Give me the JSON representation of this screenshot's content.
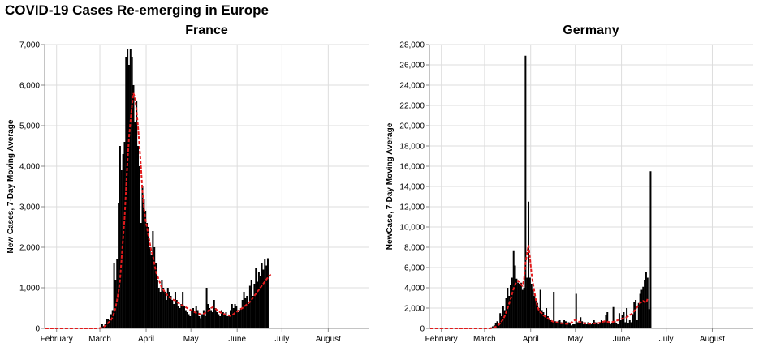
{
  "title": "COVID-19 Cases Re-emerging in Europe",
  "colors": {
    "bars": "#000000",
    "average_line": "#e31a1c",
    "grid": "#dddddd"
  },
  "chart_data": [
    {
      "type": "bar",
      "title": "France",
      "ylabel": "New Cases, 7-Day Moving Average",
      "xlabel": "",
      "ylim": [
        0,
        7000
      ],
      "yticks": [
        0,
        1000,
        2000,
        3000,
        4000,
        5000,
        6000,
        7000
      ],
      "ytick_labels": [
        "0",
        "1,000",
        "2,000",
        "3,000",
        "4,000",
        "5,000",
        "6,000",
        "7,000"
      ],
      "x_start": "2020-01-24",
      "x_end": "2020-08-28",
      "xtick_dates": [
        "2020-02-01",
        "2020-03-01",
        "2020-04-01",
        "2020-05-01",
        "2020-06-01",
        "2020-07-01",
        "2020-08-01"
      ],
      "xtick_labels": [
        "February",
        "March",
        "April",
        "May",
        "June",
        "July",
        "August"
      ],
      "grid": true,
      "bar_start_date": "2020-01-24",
      "bar_values": [
        0,
        0,
        0,
        0,
        0,
        0,
        0,
        0,
        0,
        0,
        0,
        0,
        0,
        0,
        0,
        0,
        0,
        0,
        0,
        0,
        0,
        0,
        0,
        0,
        0,
        0,
        0,
        0,
        0,
        0,
        0,
        0,
        0,
        0,
        0,
        0,
        20,
        30,
        100,
        50,
        100,
        220,
        230,
        200,
        350,
        450,
        1600,
        1200,
        1700,
        3100,
        4500,
        3900,
        4300,
        4600,
        6700,
        6900,
        6500,
        6900,
        6700,
        6000,
        5100,
        5600,
        4500,
        4000,
        2600,
        3500,
        3200,
        2900,
        2600,
        2500,
        2000,
        1800,
        2400,
        2000,
        1600,
        1200,
        1000,
        900,
        1200,
        1000,
        900,
        700,
        1000,
        900,
        800,
        700,
        600,
        900,
        700,
        550,
        500,
        600,
        900,
        550,
        450,
        400,
        350,
        300,
        450,
        500,
        400,
        550,
        450,
        300,
        250,
        350,
        450,
        300,
        1000,
        600,
        500,
        450,
        400,
        700,
        500,
        400,
        350,
        300,
        450,
        400,
        350,
        400,
        300,
        300,
        450,
        600,
        500,
        600,
        550,
        400,
        450,
        500,
        700,
        900,
        750,
        800,
        600,
        1050,
        1200,
        800,
        1100,
        1500,
        1150,
        1400,
        1300,
        1600,
        1450,
        1700,
        1550,
        1730
      ],
      "avg_values": [
        0,
        0,
        0,
        0,
        0,
        0,
        0,
        0,
        0,
        0,
        0,
        0,
        0,
        0,
        0,
        0,
        0,
        0,
        0,
        0,
        0,
        0,
        0,
        0,
        0,
        0,
        0,
        0,
        0,
        0,
        0,
        0,
        0,
        0,
        0,
        0,
        5,
        10,
        20,
        40,
        60,
        90,
        130,
        170,
        210,
        280,
        380,
        500,
        700,
        900,
        1200,
        1700,
        2200,
        2700,
        3400,
        4100,
        4700,
        5100,
        5500,
        5800,
        5700,
        5400,
        5000,
        4500,
        4000,
        3400,
        3000,
        2700,
        2500,
        2300,
        2100,
        1900,
        1800,
        1600,
        1400,
        1300,
        1200,
        1100,
        1000,
        950,
        900,
        850,
        800,
        780,
        750,
        720,
        700,
        680,
        650,
        630,
        600,
        580,
        560,
        540,
        520,
        500,
        480,
        460,
        440,
        420,
        400,
        380,
        370,
        360,
        350,
        350,
        360,
        380,
        400,
        430,
        460,
        500,
        520,
        500,
        480,
        450,
        420,
        400,
        380,
        360,
        350,
        340,
        330,
        320,
        310,
        330,
        350,
        380,
        400,
        430,
        450,
        480,
        500,
        530,
        560,
        590,
        620,
        650,
        700,
        750,
        800,
        850,
        900,
        950,
        1000,
        1050,
        1100,
        1150,
        1200,
        1250,
        1300,
        1330
      ]
    },
    {
      "type": "bar",
      "title": "Germany",
      "ylabel": "NewCase, 7-Day Moving Average",
      "xlabel": "",
      "ylim": [
        0,
        28000
      ],
      "yticks": [
        0,
        2000,
        4000,
        6000,
        8000,
        10000,
        12000,
        14000,
        16000,
        18000,
        20000,
        22000,
        24000,
        26000,
        28000
      ],
      "ytick_labels": [
        "0",
        "2,000",
        "4,000",
        "6,000",
        "8,000",
        "10,000",
        "12,000",
        "14,000",
        "16,000",
        "18,000",
        "20,000",
        "22,000",
        "24,000",
        "26,000",
        "28,000"
      ],
      "x_start": "2020-01-24",
      "x_end": "2020-08-28",
      "xtick_dates": [
        "2020-02-01",
        "2020-03-01",
        "2020-04-01",
        "2020-05-01",
        "2020-06-01",
        "2020-07-01",
        "2020-08-01"
      ],
      "xtick_labels": [
        "February",
        "March",
        "April",
        "May",
        "June",
        "July",
        "August"
      ],
      "grid": true,
      "bar_start_date": "2020-01-24",
      "bar_values": [
        0,
        0,
        0,
        0,
        0,
        0,
        0,
        0,
        0,
        0,
        0,
        0,
        0,
        0,
        0,
        0,
        0,
        0,
        0,
        0,
        0,
        0,
        0,
        0,
        0,
        0,
        0,
        0,
        0,
        0,
        0,
        0,
        0,
        0,
        0,
        0,
        0,
        0,
        0,
        0,
        0,
        100,
        200,
        300,
        500,
        700,
        400,
        1500,
        1200,
        2200,
        1800,
        3000,
        4000,
        3200,
        4300,
        5000,
        7700,
        6200,
        4900,
        4500,
        4400,
        4500,
        3800,
        4000,
        26900,
        5000,
        12500,
        5000,
        4400,
        3800,
        3200,
        2800,
        2500,
        2000,
        3800,
        1800,
        1600,
        1200,
        2000,
        1200,
        1000,
        800,
        700,
        3600,
        700,
        600,
        700,
        800,
        600,
        500,
        800,
        700,
        400,
        600,
        500,
        300,
        400,
        400,
        3400,
        600,
        500,
        1100,
        700,
        400,
        600,
        400,
        600,
        500,
        400,
        500,
        800,
        600,
        500,
        400,
        500,
        800,
        700,
        600,
        1300,
        1600,
        700,
        400,
        500,
        2100,
        700,
        500,
        400,
        1500,
        800,
        1300,
        1600,
        600,
        2000,
        500,
        800,
        600,
        1400,
        2600,
        2800,
        800,
        2500,
        3400,
        3800,
        4100,
        4800,
        5600,
        5000,
        1900,
        15500
      ],
      "avg_values": [
        0,
        0,
        0,
        0,
        0,
        0,
        0,
        0,
        0,
        0,
        0,
        0,
        0,
        0,
        0,
        0,
        0,
        0,
        0,
        0,
        0,
        0,
        0,
        0,
        0,
        0,
        0,
        0,
        0,
        0,
        0,
        0,
        0,
        0,
        0,
        0,
        0,
        0,
        0,
        0,
        0,
        20,
        50,
        100,
        160,
        250,
        350,
        500,
        700,
        900,
        1200,
        1600,
        2000,
        2400,
        2900,
        3400,
        3900,
        4300,
        4600,
        4700,
        4500,
        4300,
        4200,
        4800,
        6400,
        7300,
        8200,
        7000,
        5500,
        4500,
        3600,
        2800,
        2200,
        1800,
        1600,
        1500,
        1300,
        1200,
        1100,
        1000,
        900,
        800,
        700,
        650,
        600,
        600,
        550,
        550,
        500,
        500,
        500,
        450,
        450,
        450,
        500,
        550,
        700,
        800,
        800,
        750,
        650,
        600,
        550,
        520,
        500,
        480,
        470,
        460,
        470,
        480,
        490,
        500,
        510,
        520,
        550,
        600,
        650,
        700,
        680,
        650,
        620,
        600,
        620,
        650,
        700,
        750,
        800,
        850,
        900,
        950,
        1000,
        1050,
        1100,
        1200,
        1300,
        1400,
        1500,
        1700,
        1900,
        2100,
        2300,
        2500,
        2600,
        2700,
        2600,
        2500,
        2900
      ]
    }
  ]
}
